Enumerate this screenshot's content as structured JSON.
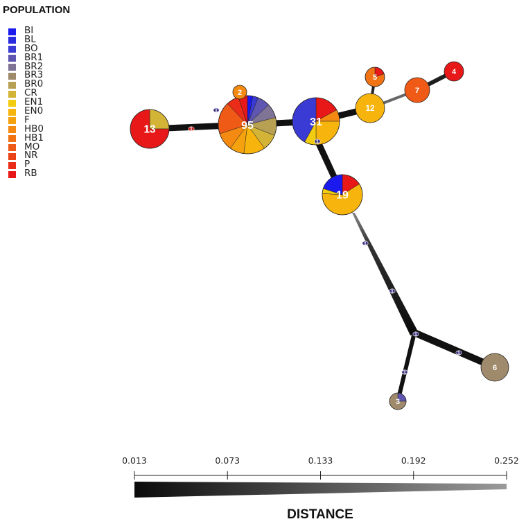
{
  "legend": {
    "title": "POPULATION",
    "items": [
      {
        "label": "BI",
        "color": "#1a1aee"
      },
      {
        "label": "BL",
        "color": "#2a2ae0"
      },
      {
        "label": "BO",
        "color": "#3a3ad4"
      },
      {
        "label": "BR1",
        "color": "#5e56b0"
      },
      {
        "label": "BR2",
        "color": "#7f7396"
      },
      {
        "label": "BR3",
        "color": "#a08a6c"
      },
      {
        "label": "BR0",
        "color": "#b8a052"
      },
      {
        "label": "CR",
        "color": "#d4b436"
      },
      {
        "label": "EN1",
        "color": "#f2cc10"
      },
      {
        "label": "EN0",
        "color": "#f7b40c"
      },
      {
        "label": "F",
        "color": "#f6a20e"
      },
      {
        "label": "HB0",
        "color": "#f58a12"
      },
      {
        "label": "HB1",
        "color": "#f27314"
      },
      {
        "label": "MO",
        "color": "#ef5a16"
      },
      {
        "label": "NR",
        "color": "#ec4218"
      },
      {
        "label": "P",
        "color": "#ea2c18"
      },
      {
        "label": "RB",
        "color": "#e81818"
      }
    ]
  },
  "network": {
    "nodes": [
      {
        "id": "95",
        "label": "95",
        "slices": [
          {
            "pop": "BI",
            "share": 3
          },
          {
            "pop": "BO",
            "share": 3
          },
          {
            "pop": "BR1",
            "share": 7
          },
          {
            "pop": "BR2",
            "share": 8
          },
          {
            "pop": "BR0",
            "share": 10
          },
          {
            "pop": "CR",
            "share": 9
          },
          {
            "pop": "EN0",
            "share": 12
          },
          {
            "pop": "F",
            "share": 8
          },
          {
            "pop": "HB0",
            "share": 10
          },
          {
            "pop": "MO",
            "share": 18
          },
          {
            "pop": "P",
            "share": 7
          },
          {
            "pop": "RB",
            "share": 5
          }
        ]
      },
      {
        "id": "31",
        "label": "31",
        "slices": [
          {
            "pop": "RB",
            "share": 17
          },
          {
            "pop": "HB0",
            "share": 8
          },
          {
            "pop": "EN0",
            "share": 25
          },
          {
            "pop": "EN1",
            "share": 8
          },
          {
            "pop": "BO",
            "share": 42
          }
        ]
      },
      {
        "id": "19",
        "label": "19",
        "slices": [
          {
            "pop": "RB",
            "share": 16
          },
          {
            "pop": "EN0",
            "share": 60
          },
          {
            "pop": "EN1",
            "share": 4
          },
          {
            "pop": "BI",
            "share": 20
          }
        ]
      },
      {
        "id": "13",
        "label": "13",
        "slices": [
          {
            "pop": "CR",
            "share": 25
          },
          {
            "pop": "RB",
            "share": 75
          }
        ]
      },
      {
        "id": "12",
        "label": "12",
        "slices": [
          {
            "pop": "EN0",
            "share": 100
          }
        ]
      },
      {
        "id": "7",
        "label": "7",
        "slices": [
          {
            "pop": "MO",
            "share": 100
          }
        ]
      },
      {
        "id": "6",
        "label": "6",
        "slices": [
          {
            "pop": "BR3",
            "share": 100
          }
        ]
      },
      {
        "id": "5",
        "label": "5",
        "slices": [
          {
            "pop": "RB",
            "share": 20
          },
          {
            "pop": "HB1",
            "share": 80
          }
        ]
      },
      {
        "id": "4",
        "label": "4",
        "slices": [
          {
            "pop": "RB",
            "share": 100
          }
        ]
      },
      {
        "id": "3",
        "label": "3",
        "slices": [
          {
            "pop": "BR1",
            "share": 25
          },
          {
            "pop": "BR3",
            "share": 75
          }
        ]
      },
      {
        "id": "2",
        "label": "2",
        "slices": [
          {
            "pop": "HB0",
            "share": 100
          }
        ]
      }
    ],
    "edges": [
      {
        "id": "e-13-95",
        "from": "13",
        "to": "95",
        "label": "1"
      },
      {
        "id": "e-95-31",
        "from": "95",
        "to": "31",
        "label": ""
      },
      {
        "id": "e-31-junction",
        "from": "31",
        "to": "junction",
        "label": "1"
      },
      {
        "id": "e-junction-19",
        "from": "junction",
        "to": "19",
        "label": ""
      },
      {
        "id": "e-31-12",
        "from": "31",
        "to": "12",
        "label": ""
      },
      {
        "id": "e-12-7",
        "from": "12",
        "to": "7",
        "label": ""
      },
      {
        "id": "e-7-4",
        "from": "7",
        "to": "4",
        "label": ""
      },
      {
        "id": "e-12-5",
        "from": "12",
        "to": "5",
        "label": ""
      },
      {
        "id": "e-2-95",
        "from": "2",
        "to": "95",
        "label": "1"
      },
      {
        "id": "e-19-branch",
        "from": "19",
        "to": "branch",
        "label": "1"
      },
      {
        "id": "e-branch-6",
        "from": "branch",
        "to": "6",
        "label": "1"
      },
      {
        "id": "e-branch-3",
        "from": "branch",
        "to": "3",
        "label": "1"
      }
    ],
    "extra_marks": [
      "1",
      "1"
    ]
  },
  "distance_scale": {
    "title": "DISTANCE",
    "ticks": [
      "0.013",
      "0.073",
      "0.133",
      "0.192",
      "0.252"
    ]
  }
}
